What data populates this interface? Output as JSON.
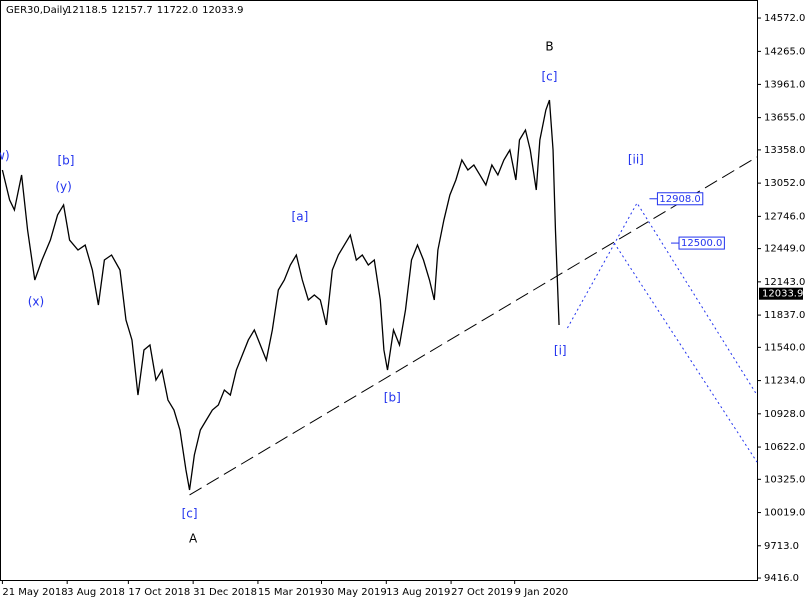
{
  "chart_data": {
    "type": "line",
    "header": {
      "symbol": "GER30,Daily",
      "open": {
        "value": 12118.5,
        "label": "12118.5"
      },
      "high": {
        "value": 12157.7,
        "label": "12157.7"
      },
      "low": {
        "value": 11722,
        "label": "11722.0"
      },
      "close": {
        "value": 12033.9,
        "label": "12033.9"
      }
    },
    "color": "#000000",
    "x": [
      2,
      8,
      12,
      18,
      23,
      29,
      35,
      42,
      48,
      53,
      58,
      65,
      71,
      77,
      82,
      87,
      93,
      100,
      105,
      110,
      115,
      120,
      125,
      130,
      135,
      140,
      145,
      150,
      155,
      158,
      162,
      167,
      172,
      177,
      182,
      187,
      192,
      197,
      202,
      207,
      212,
      217,
      222,
      227,
      232,
      237,
      242,
      247,
      252,
      257,
      262,
      267,
      272,
      277,
      282,
      287,
      292,
      297,
      302,
      307,
      312,
      317,
      320,
      323,
      328,
      333,
      338,
      343,
      348,
      353,
      358,
      362,
      365,
      370,
      375,
      380,
      385,
      390,
      395,
      400,
      405,
      410,
      415,
      420,
      425,
      430,
      433,
      438,
      442,
      447,
      450,
      455,
      458,
      461,
      463,
      466
    ],
    "values": [
      13173,
      12897,
      12805,
      13127,
      12620,
      12160,
      12344,
      12528,
      12759,
      12851,
      12528,
      12436,
      12482,
      12252,
      11930,
      12344,
      12390,
      12252,
      11792,
      11608,
      11101,
      11516,
      11562,
      11239,
      11331,
      11055,
      10963,
      10779,
      10411,
      10227,
      10549,
      10779,
      10871,
      10963,
      11009,
      11147,
      11101,
      11331,
      11470,
      11608,
      11700,
      11562,
      11423,
      11700,
      12068,
      12160,
      12298,
      12390,
      12160,
      11976,
      12022,
      11976,
      11746,
      12252,
      12390,
      12482,
      12574,
      12344,
      12390,
      12298,
      12344,
      11976,
      11516,
      11331,
      11700,
      11562,
      11884,
      12344,
      12482,
      12344,
      12160,
      11976,
      12436,
      12712,
      12943,
      13081,
      13265,
      13173,
      13219,
      13127,
      13035,
      13219,
      13127,
      13265,
      13357,
      13081,
      13449,
      13541,
      13357,
      12989,
      13449,
      13725,
      13817,
      13357,
      12620,
      11746
    ],
    "xlim": [
      0,
      631
    ],
    "ylim": [
      9398,
      14738
    ],
    "xticks": [
      {
        "value": 2,
        "label": "21 May 2018"
      },
      {
        "value": 56,
        "label": "3 Aug 2018"
      },
      {
        "value": 107,
        "label": "17 Oct 2018"
      },
      {
        "value": 161,
        "label": "31 Dec 2018"
      },
      {
        "value": 215,
        "label": "15 Mar 2019"
      },
      {
        "value": 268,
        "label": "30 May 2019"
      },
      {
        "value": 322,
        "label": "13 Aug 2019"
      },
      {
        "value": 376,
        "label": "27 Oct 2019"
      },
      {
        "value": 429,
        "label": "9 Jan 2020"
      }
    ],
    "yticks": [
      {
        "value": 14572,
        "label": "14572.0"
      },
      {
        "value": 14265,
        "label": "14265.0"
      },
      {
        "value": 13961,
        "label": "13961.0"
      },
      {
        "value": 13655,
        "label": "13655.0"
      },
      {
        "value": 13358,
        "label": "13358.0"
      },
      {
        "value": 13052,
        "label": "13052.0"
      },
      {
        "value": 12746,
        "label": "12746.0"
      },
      {
        "value": 12449,
        "label": "12449.0"
      },
      {
        "value": 12143,
        "label": "12143.0"
      },
      {
        "value": 11837,
        "label": "11837.0"
      },
      {
        "value": 11540,
        "label": "11540.0"
      },
      {
        "value": 11234,
        "label": "11234.0"
      },
      {
        "value": 10928,
        "label": "10928.0"
      },
      {
        "value": 10622,
        "label": "10622.0"
      },
      {
        "value": 10325,
        "label": "10325.0"
      },
      {
        "value": 10019,
        "label": "10019.0"
      },
      {
        "value": 9713,
        "label": "9713.0"
      },
      {
        "value": 9416,
        "label": "9416.0"
      }
    ],
    "last_price": 12033.9,
    "levels": [
      {
        "value": 12908,
        "label": "12908.0",
        "x": 548
      },
      {
        "value": 12500,
        "label": "12500.0",
        "x": 566
      }
    ],
    "lines": [
      {
        "x": [
          158,
          631
        ],
        "y": [
          10181,
          13293
        ],
        "color": "#000000",
        "dash": "14,6"
      },
      {
        "x": [
          473,
          531,
          631
        ],
        "y": [
          11718,
          12869,
          11101
        ],
        "color": "#2233ee",
        "dash": "2,3"
      },
      {
        "x": [
          512,
          631
        ],
        "y": [
          12501,
          10484
        ],
        "color": "#2233ee",
        "dash": "2,3"
      }
    ],
    "annotations": [
      {
        "text": "w)",
        "x": 2,
        "y": 13302,
        "color": "#2233ee"
      },
      {
        "text": "[b]",
        "x": 55,
        "y": 13256,
        "color": "#2233ee"
      },
      {
        "text": "(y)",
        "x": 53,
        "y": 13016,
        "color": "#2233ee"
      },
      {
        "text": "(x)",
        "x": 30,
        "y": 11958,
        "color": "#2233ee"
      },
      {
        "text": "[c]",
        "x": 158,
        "y": 10006,
        "color": "#2233ee"
      },
      {
        "text": "A",
        "x": 161,
        "y": 9776,
        "color": "#000000"
      },
      {
        "text": "[a]",
        "x": 250,
        "y": 12740,
        "color": "#2233ee"
      },
      {
        "text": "[b]",
        "x": 327,
        "y": 11074,
        "color": "#2233ee"
      },
      {
        "text": "B",
        "x": 458,
        "y": 14305,
        "color": "#000000"
      },
      {
        "text": "[c]",
        "x": 458,
        "y": 14029,
        "color": "#2233ee"
      },
      {
        "text": "[i]",
        "x": 467,
        "y": 11506,
        "color": "#2233ee"
      },
      {
        "text": "[ii]",
        "x": 530,
        "y": 13265,
        "color": "#2233ee"
      }
    ]
  }
}
